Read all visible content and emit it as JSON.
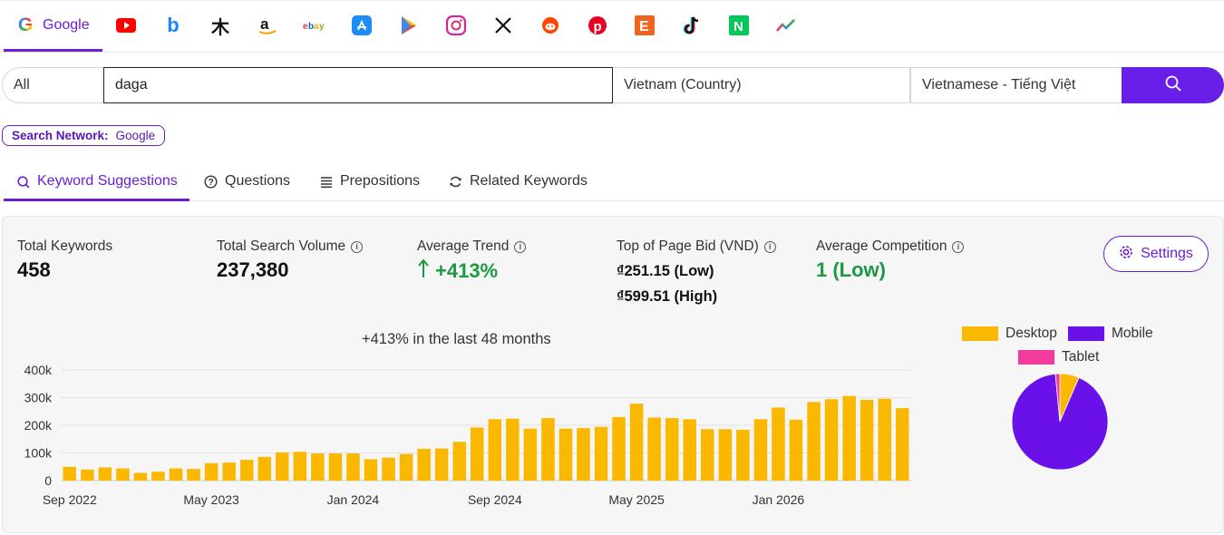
{
  "sources": {
    "active_label": "Google",
    "icons": [
      "youtube-icon",
      "bing-icon",
      "yandex-icon",
      "amazon-icon",
      "ebay-icon",
      "app-store-icon",
      "play-store-icon",
      "instagram-icon",
      "x-icon",
      "reddit-icon",
      "pinterest-icon",
      "etsy-icon",
      "tiktok-icon",
      "naver-icon",
      "trends-icon"
    ]
  },
  "search": {
    "scope": "All",
    "keyword": "daga",
    "country": "Vietnam (Country)",
    "language": "Vietnamese - Tiếng Việt"
  },
  "network": {
    "label": "Search Network:",
    "value": "Google"
  },
  "tabs": [
    {
      "label": "Keyword Suggestions",
      "active": true
    },
    {
      "label": "Questions"
    },
    {
      "label": "Prepositions"
    },
    {
      "label": "Related Keywords"
    }
  ],
  "stats": {
    "total_keywords_label": "Total Keywords",
    "total_keywords": "458",
    "total_volume_label": "Total Search Volume",
    "total_volume": "237,380",
    "avg_trend_label": "Average Trend",
    "avg_trend": "+413%",
    "bid_label": "Top of Page Bid (VND)",
    "bid_low": "₫251.15 (Low)",
    "bid_high": "₫599.51 (High)",
    "competition_label": "Average Competition",
    "competition": "1 (Low)",
    "settings_label": "Settings"
  },
  "colors": {
    "accent": "#6a1fd6",
    "bar": "#fbb800",
    "desktop": "#fbb800",
    "mobile": "#6a10e8",
    "tablet": "#f23b9a",
    "green": "#1a9a44"
  },
  "chart_data": [
    {
      "type": "bar",
      "title": "+413% in the last 48 months",
      "x_tick_labels": [
        "Sep 2022",
        "May 2023",
        "Jan 2024",
        "Sep 2024",
        "May 2025",
        "Jan 2026"
      ],
      "y_tick_labels": [
        "0",
        "100k",
        "200k",
        "300k",
        "400k"
      ],
      "ylim": [
        0,
        400000
      ],
      "grid": true,
      "categories": [
        "Sep 2022",
        "Oct 2022",
        "Nov 2022",
        "Dec 2022",
        "Jan 2023",
        "Feb 2023",
        "Mar 2023",
        "Apr 2023",
        "May 2023",
        "Jun 2023",
        "Jul 2023",
        "Aug 2023",
        "Sep 2023",
        "Oct 2023",
        "Nov 2023",
        "Dec 2023",
        "Jan 2024",
        "Feb 2024",
        "Mar 2024",
        "Apr 2024",
        "May 2024",
        "Jun 2024",
        "Jul 2024",
        "Aug 2024",
        "Sep 2024",
        "Oct 2024",
        "Nov 2024",
        "Dec 2024",
        "Jan 2025",
        "Feb 2025",
        "Mar 2025",
        "Apr 2025",
        "May 2025",
        "Jun 2025",
        "Jul 2025",
        "Aug 2025",
        "Sep 2025",
        "Oct 2025",
        "Nov 2025",
        "Dec 2025",
        "Jan 2026",
        "Feb 2026",
        "Mar 2026",
        "Apr 2026",
        "May 2026",
        "Jun 2026",
        "Jul 2026",
        "Aug 2026"
      ],
      "values": [
        50000,
        40000,
        48000,
        44000,
        28000,
        32000,
        44000,
        42000,
        63000,
        65000,
        75000,
        86000,
        102000,
        104000,
        98000,
        98000,
        98000,
        77000,
        83000,
        96000,
        115000,
        116000,
        140000,
        192000,
        222000,
        224000,
        188000,
        226000,
        188000,
        190000,
        194000,
        230000,
        278000,
        228000,
        226000,
        222000,
        186000,
        186000,
        184000,
        222000,
        264000,
        220000,
        284000,
        294000,
        306000,
        292000,
        296000,
        262000
      ]
    },
    {
      "type": "pie",
      "labels": [
        "Desktop",
        "Mobile",
        "Tablet"
      ],
      "values": [
        6.5,
        92,
        1.5
      ]
    }
  ]
}
